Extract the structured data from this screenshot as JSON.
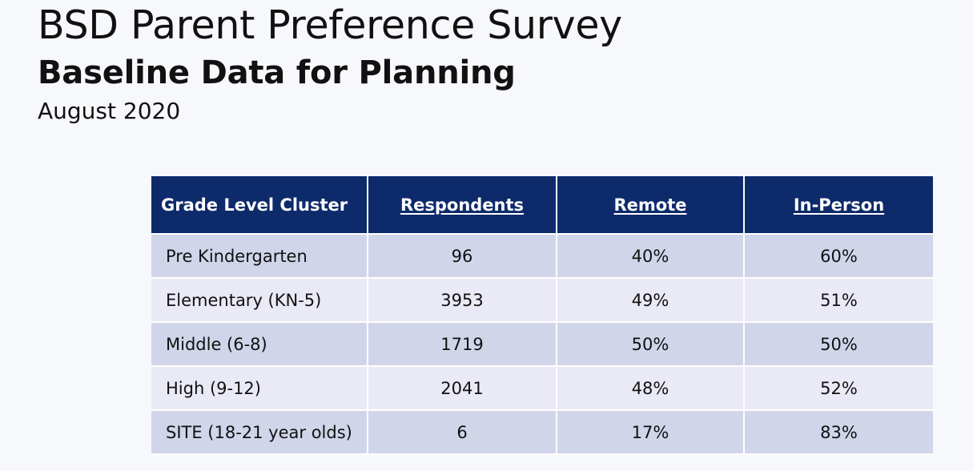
{
  "slide": {
    "title": "BSD Parent Preference Survey",
    "subtitle": "Baseline Data for Planning",
    "date": "August 2020"
  },
  "table": {
    "headers": [
      "Grade Level Cluster",
      "Respondents",
      "Remote",
      "In-Person"
    ],
    "rows": [
      [
        "Pre Kindergarten",
        "96",
        "40%",
        "60%"
      ],
      [
        "Elementary (KN-5)",
        "3953",
        "49%",
        "51%"
      ],
      [
        "Middle (6-8)",
        "1719",
        "50%",
        "50%"
      ],
      [
        "High (9-12)",
        "2041",
        "48%",
        "52%"
      ],
      [
        "SITE (18-21 year olds)",
        "6",
        "17%",
        "83%"
      ]
    ]
  },
  "colors": {
    "header_background": "#0d2a6b",
    "row_dark": "#d0d5ea",
    "row_light": "#e9eaf5",
    "slide_background": "#f7f8fc"
  }
}
